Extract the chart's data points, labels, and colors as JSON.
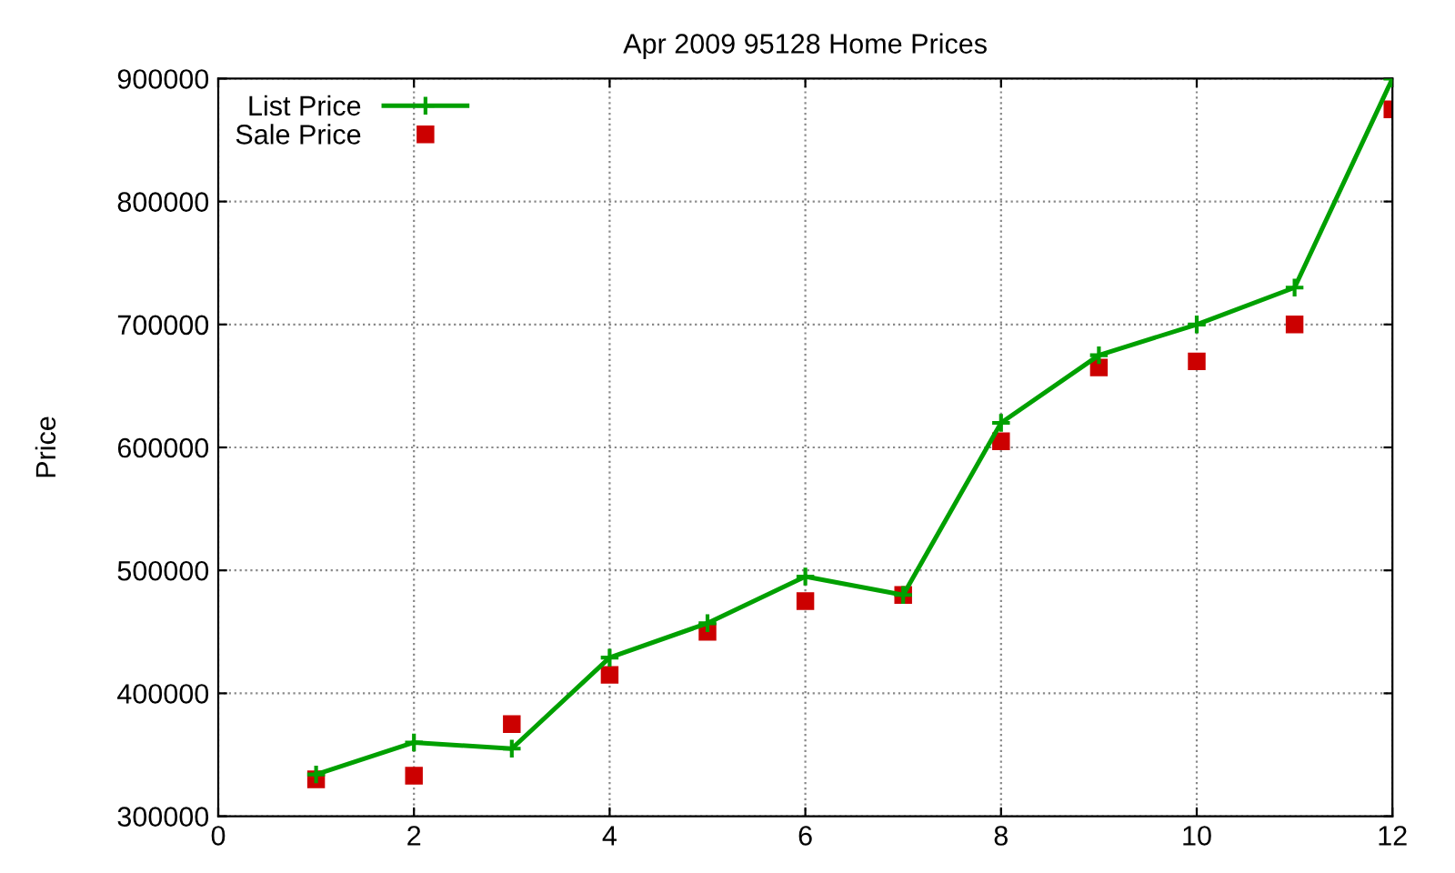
{
  "chart_data": {
    "type": "line",
    "title": "Apr 2009 95128 Home Prices",
    "ylabel": "Price",
    "x": [
      1,
      2,
      3,
      4,
      5,
      6,
      7,
      8,
      9,
      10,
      11,
      12
    ],
    "series": [
      {
        "name": "List Price",
        "marker": "cross",
        "color": "#00a000",
        "values": [
          334000,
          360000,
          355000,
          429000,
          457000,
          495000,
          480000,
          620000,
          675000,
          700000,
          730000,
          900000
        ]
      },
      {
        "name": "Sale Price",
        "type": "scatter",
        "marker": "square",
        "color": "#cc0000",
        "values": [
          330000,
          333000,
          375000,
          415000,
          450000,
          475000,
          480000,
          605000,
          665000,
          670000,
          700000,
          875000
        ]
      }
    ],
    "xlim": [
      0,
      12
    ],
    "xticks": [
      0,
      2,
      4,
      6,
      8,
      10,
      12
    ],
    "ylim": [
      300000,
      900000
    ],
    "yticks": [
      300000,
      400000,
      500000,
      600000,
      700000,
      800000,
      900000
    ],
    "grid": true,
    "legend": "top left",
    "line_style": "solid"
  }
}
